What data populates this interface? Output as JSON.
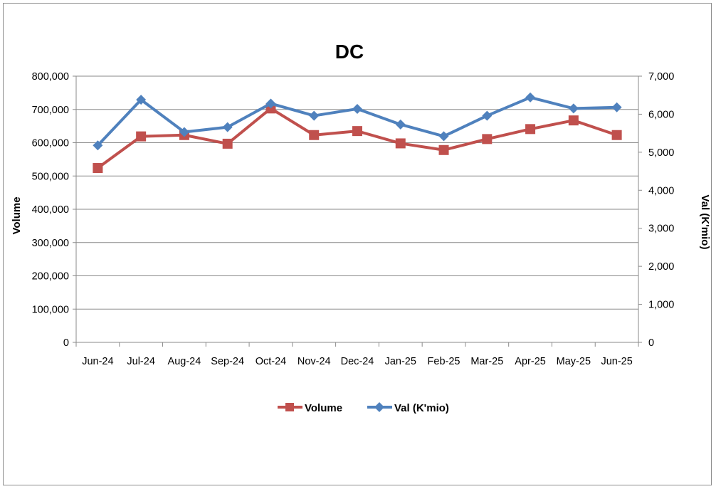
{
  "chart_data": {
    "type": "line",
    "title": "DC",
    "categories": [
      "Jun-24",
      "Jul-24",
      "Aug-24",
      "Sep-24",
      "Oct-24",
      "Nov-24",
      "Dec-24",
      "Jan-25",
      "Feb-25",
      "Mar-25",
      "Apr-25",
      "May-25",
      "Jun-25"
    ],
    "y_left": {
      "label": "Volume",
      "ylim": [
        0,
        800000
      ],
      "ticks": [
        "0",
        "100,000",
        "200,000",
        "300,000",
        "400,000",
        "500,000",
        "600,000",
        "700,000",
        "800,000"
      ]
    },
    "y_right": {
      "label": "Val (K'mio)",
      "ylim": [
        0,
        7000
      ],
      "ticks": [
        "0",
        "1,000",
        "2,000",
        "3,000",
        "4,000",
        "5,000",
        "6,000",
        "7,000"
      ]
    },
    "grid": true,
    "legend_position": "bottom",
    "series": [
      {
        "name": "Volume",
        "axis": "left",
        "color": "#C0504D",
        "marker": "square",
        "values": [
          524000,
          619000,
          623000,
          597000,
          703000,
          623000,
          635000,
          598000,
          578000,
          611000,
          641000,
          667000,
          623000
        ]
      },
      {
        "name": "Val (K'mio)",
        "axis": "right",
        "color": "#4F81BD",
        "marker": "diamond",
        "values": [
          5180,
          6380,
          5530,
          5660,
          6280,
          5960,
          6140,
          5730,
          5420,
          5960,
          6440,
          6150,
          6180
        ]
      }
    ]
  }
}
